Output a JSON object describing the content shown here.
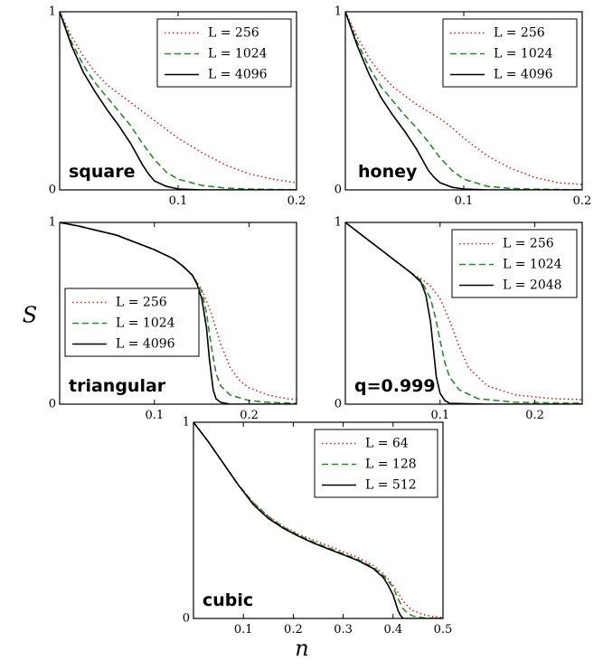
{
  "figure": {
    "ylabel": "S",
    "xlabel": "n"
  },
  "chart_data": [
    {
      "type": "line",
      "label": "square",
      "xlim": [
        0,
        0.2
      ],
      "ylim": [
        0,
        1
      ],
      "xticks": [
        "0.1",
        "0.2"
      ],
      "yticks": [
        "0",
        "1"
      ],
      "legend": "top-right",
      "series": [
        {
          "name": "L = 256",
          "color": "#e41a1c",
          "dash": "dotted",
          "x": [
            0,
            0.01,
            0.02,
            0.03,
            0.04,
            0.05,
            0.06,
            0.07,
            0.08,
            0.09,
            0.1,
            0.12,
            0.14,
            0.16,
            0.18,
            0.2
          ],
          "y": [
            1,
            0.86,
            0.75,
            0.66,
            0.59,
            0.54,
            0.49,
            0.44,
            0.39,
            0.34,
            0.29,
            0.21,
            0.14,
            0.09,
            0.06,
            0.04
          ]
        },
        {
          "name": "L = 1024",
          "color": "#2a8a2a",
          "dash": "dashed",
          "x": [
            0,
            0.01,
            0.02,
            0.03,
            0.04,
            0.05,
            0.06,
            0.07,
            0.08,
            0.09,
            0.1,
            0.12,
            0.14,
            0.16,
            0.18,
            0.2
          ],
          "y": [
            1,
            0.83,
            0.7,
            0.6,
            0.52,
            0.44,
            0.36,
            0.26,
            0.17,
            0.1,
            0.06,
            0.025,
            0.01,
            0.005,
            0.002,
            0.0
          ]
        },
        {
          "name": "L = 4096",
          "color": "#000000",
          "dash": "solid",
          "x": [
            0,
            0.01,
            0.02,
            0.03,
            0.04,
            0.05,
            0.06,
            0.065,
            0.07,
            0.075,
            0.08,
            0.09,
            0.1,
            0.12,
            0.15,
            0.2
          ],
          "y": [
            1,
            0.81,
            0.66,
            0.55,
            0.45,
            0.36,
            0.26,
            0.2,
            0.14,
            0.09,
            0.05,
            0.02,
            0.005,
            0.0,
            0.0,
            0.0
          ]
        }
      ]
    },
    {
      "type": "line",
      "label": "honey",
      "xlim": [
        0,
        0.2
      ],
      "ylim": [
        0,
        1
      ],
      "xticks": [
        "0.1",
        "0.2"
      ],
      "yticks": [
        "0",
        "1"
      ],
      "legend": "top-right",
      "series": [
        {
          "name": "L = 256",
          "color": "#e41a1c",
          "dash": "dotted",
          "x": [
            0,
            0.01,
            0.02,
            0.03,
            0.04,
            0.05,
            0.06,
            0.07,
            0.08,
            0.09,
            0.1,
            0.12,
            0.14,
            0.16,
            0.18,
            0.2
          ],
          "y": [
            1,
            0.86,
            0.74,
            0.65,
            0.58,
            0.53,
            0.48,
            0.44,
            0.4,
            0.35,
            0.29,
            0.19,
            0.12,
            0.07,
            0.04,
            0.03
          ]
        },
        {
          "name": "L = 1024",
          "color": "#2a8a2a",
          "dash": "dashed",
          "x": [
            0,
            0.01,
            0.02,
            0.03,
            0.04,
            0.05,
            0.06,
            0.07,
            0.08,
            0.09,
            0.1,
            0.12,
            0.14,
            0.16,
            0.18,
            0.2
          ],
          "y": [
            1,
            0.83,
            0.69,
            0.58,
            0.5,
            0.42,
            0.35,
            0.27,
            0.18,
            0.11,
            0.06,
            0.02,
            0.008,
            0.004,
            0.002,
            0.0
          ]
        },
        {
          "name": "L = 4096",
          "color": "#000000",
          "dash": "solid",
          "x": [
            0,
            0.01,
            0.02,
            0.03,
            0.04,
            0.05,
            0.06,
            0.065,
            0.07,
            0.075,
            0.08,
            0.09,
            0.1,
            0.12,
            0.15,
            0.2
          ],
          "y": [
            1,
            0.81,
            0.65,
            0.52,
            0.42,
            0.33,
            0.23,
            0.17,
            0.11,
            0.07,
            0.04,
            0.015,
            0.005,
            0.0,
            0.0,
            0.0
          ]
        }
      ]
    },
    {
      "type": "line",
      "label": "triangular",
      "xlim": [
        0,
        0.25
      ],
      "ylim": [
        0,
        1
      ],
      "xticks": [
        "0.1",
        "0.2"
      ],
      "yticks": [
        "0",
        "1"
      ],
      "legend": "center-left",
      "series": [
        {
          "name": "L = 256",
          "color": "#e41a1c",
          "dash": "dotted",
          "x": [
            0,
            0.02,
            0.04,
            0.06,
            0.08,
            0.1,
            0.12,
            0.13,
            0.14,
            0.15,
            0.16,
            0.17,
            0.18,
            0.19,
            0.2,
            0.22,
            0.24,
            0.25
          ],
          "y": [
            1,
            0.98,
            0.955,
            0.93,
            0.89,
            0.85,
            0.8,
            0.76,
            0.71,
            0.63,
            0.5,
            0.33,
            0.2,
            0.13,
            0.09,
            0.05,
            0.03,
            0.025
          ]
        },
        {
          "name": "L = 1024",
          "color": "#2a8a2a",
          "dash": "dashed",
          "x": [
            0,
            0.02,
            0.04,
            0.06,
            0.08,
            0.1,
            0.12,
            0.13,
            0.14,
            0.15,
            0.155,
            0.16,
            0.165,
            0.17,
            0.18,
            0.2,
            0.22,
            0.25
          ],
          "y": [
            1,
            0.98,
            0.955,
            0.93,
            0.89,
            0.85,
            0.8,
            0.76,
            0.71,
            0.62,
            0.5,
            0.32,
            0.17,
            0.1,
            0.05,
            0.02,
            0.01,
            0.005
          ]
        },
        {
          "name": "L = 4096",
          "color": "#000000",
          "dash": "solid",
          "x": [
            0,
            0.02,
            0.04,
            0.06,
            0.08,
            0.1,
            0.12,
            0.13,
            0.14,
            0.145,
            0.15,
            0.155,
            0.158,
            0.162,
            0.165,
            0.17,
            0.18,
            0.25
          ],
          "y": [
            1,
            0.98,
            0.955,
            0.93,
            0.89,
            0.85,
            0.8,
            0.76,
            0.71,
            0.66,
            0.58,
            0.42,
            0.25,
            0.08,
            0.03,
            0.01,
            0.0,
            0.0
          ]
        }
      ]
    },
    {
      "type": "line",
      "label": "q=0.999",
      "xlim": [
        0,
        0.25
      ],
      "ylim": [
        0,
        1
      ],
      "xticks": [
        "0.1",
        "0.2"
      ],
      "yticks": [
        "0",
        "1"
      ],
      "legend": "top-right",
      "series": [
        {
          "name": "L = 256",
          "color": "#e41a1c",
          "dash": "dotted",
          "x": [
            0,
            0.01,
            0.02,
            0.03,
            0.04,
            0.05,
            0.06,
            0.07,
            0.08,
            0.09,
            0.1,
            0.11,
            0.12,
            0.13,
            0.15,
            0.18,
            0.22,
            0.25
          ],
          "y": [
            1,
            0.96,
            0.92,
            0.88,
            0.84,
            0.8,
            0.76,
            0.72,
            0.69,
            0.65,
            0.58,
            0.46,
            0.32,
            0.2,
            0.1,
            0.05,
            0.03,
            0.025
          ]
        },
        {
          "name": "L = 1024",
          "color": "#2a8a2a",
          "dash": "dashed",
          "x": [
            0,
            0.01,
            0.02,
            0.03,
            0.04,
            0.05,
            0.06,
            0.07,
            0.08,
            0.09,
            0.095,
            0.1,
            0.105,
            0.11,
            0.12,
            0.14,
            0.18,
            0.25
          ],
          "y": [
            1,
            0.96,
            0.92,
            0.88,
            0.84,
            0.8,
            0.76,
            0.72,
            0.68,
            0.58,
            0.48,
            0.35,
            0.23,
            0.15,
            0.08,
            0.03,
            0.01,
            0.005
          ]
        },
        {
          "name": "L = 2048",
          "color": "#000000",
          "dash": "solid",
          "x": [
            0,
            0.01,
            0.02,
            0.03,
            0.04,
            0.05,
            0.06,
            0.07,
            0.08,
            0.085,
            0.09,
            0.093,
            0.096,
            0.1,
            0.105,
            0.11,
            0.15,
            0.25
          ],
          "y": [
            1,
            0.96,
            0.92,
            0.88,
            0.84,
            0.8,
            0.76,
            0.72,
            0.67,
            0.6,
            0.45,
            0.3,
            0.15,
            0.06,
            0.02,
            0.005,
            0.0,
            0.0
          ]
        }
      ]
    },
    {
      "type": "line",
      "label": "cubic",
      "xlim": [
        0,
        0.5
      ],
      "ylim": [
        0,
        1
      ],
      "xticks": [
        "0.1",
        "0.2",
        "0.3",
        "0.4",
        "0.5"
      ],
      "yticks": [
        "0",
        "1"
      ],
      "legend": "top-right",
      "series": [
        {
          "name": "L = 64",
          "color": "#e41a1c",
          "dash": "dotted",
          "x": [
            0,
            0.03,
            0.06,
            0.09,
            0.12,
            0.15,
            0.18,
            0.21,
            0.24,
            0.27,
            0.3,
            0.33,
            0.36,
            0.38,
            0.4,
            0.41,
            0.42,
            0.43,
            0.44,
            0.46,
            0.48,
            0.5
          ],
          "y": [
            1,
            0.9,
            0.79,
            0.68,
            0.59,
            0.52,
            0.47,
            0.43,
            0.4,
            0.37,
            0.34,
            0.31,
            0.27,
            0.23,
            0.17,
            0.13,
            0.09,
            0.06,
            0.04,
            0.02,
            0.01,
            0.005
          ]
        },
        {
          "name": "L = 128",
          "color": "#2a8a2a",
          "dash": "dashed",
          "x": [
            0,
            0.03,
            0.06,
            0.09,
            0.12,
            0.15,
            0.18,
            0.21,
            0.24,
            0.27,
            0.3,
            0.33,
            0.36,
            0.38,
            0.4,
            0.41,
            0.42,
            0.43,
            0.44,
            0.46,
            0.48,
            0.5
          ],
          "y": [
            1,
            0.9,
            0.79,
            0.68,
            0.59,
            0.52,
            0.465,
            0.425,
            0.39,
            0.36,
            0.33,
            0.3,
            0.26,
            0.22,
            0.16,
            0.1,
            0.05,
            0.025,
            0.012,
            0.004,
            0.001,
            0.0
          ]
        },
        {
          "name": "L = 512",
          "color": "#000000",
          "dash": "solid",
          "x": [
            0,
            0.03,
            0.06,
            0.09,
            0.12,
            0.15,
            0.18,
            0.21,
            0.24,
            0.27,
            0.3,
            0.33,
            0.36,
            0.38,
            0.39,
            0.4,
            0.405,
            0.41,
            0.415,
            0.42,
            0.45,
            0.5
          ],
          "y": [
            1,
            0.9,
            0.79,
            0.68,
            0.58,
            0.51,
            0.46,
            0.42,
            0.385,
            0.355,
            0.325,
            0.295,
            0.255,
            0.21,
            0.17,
            0.12,
            0.08,
            0.04,
            0.015,
            0.0,
            0.0,
            0.0
          ]
        }
      ]
    }
  ]
}
